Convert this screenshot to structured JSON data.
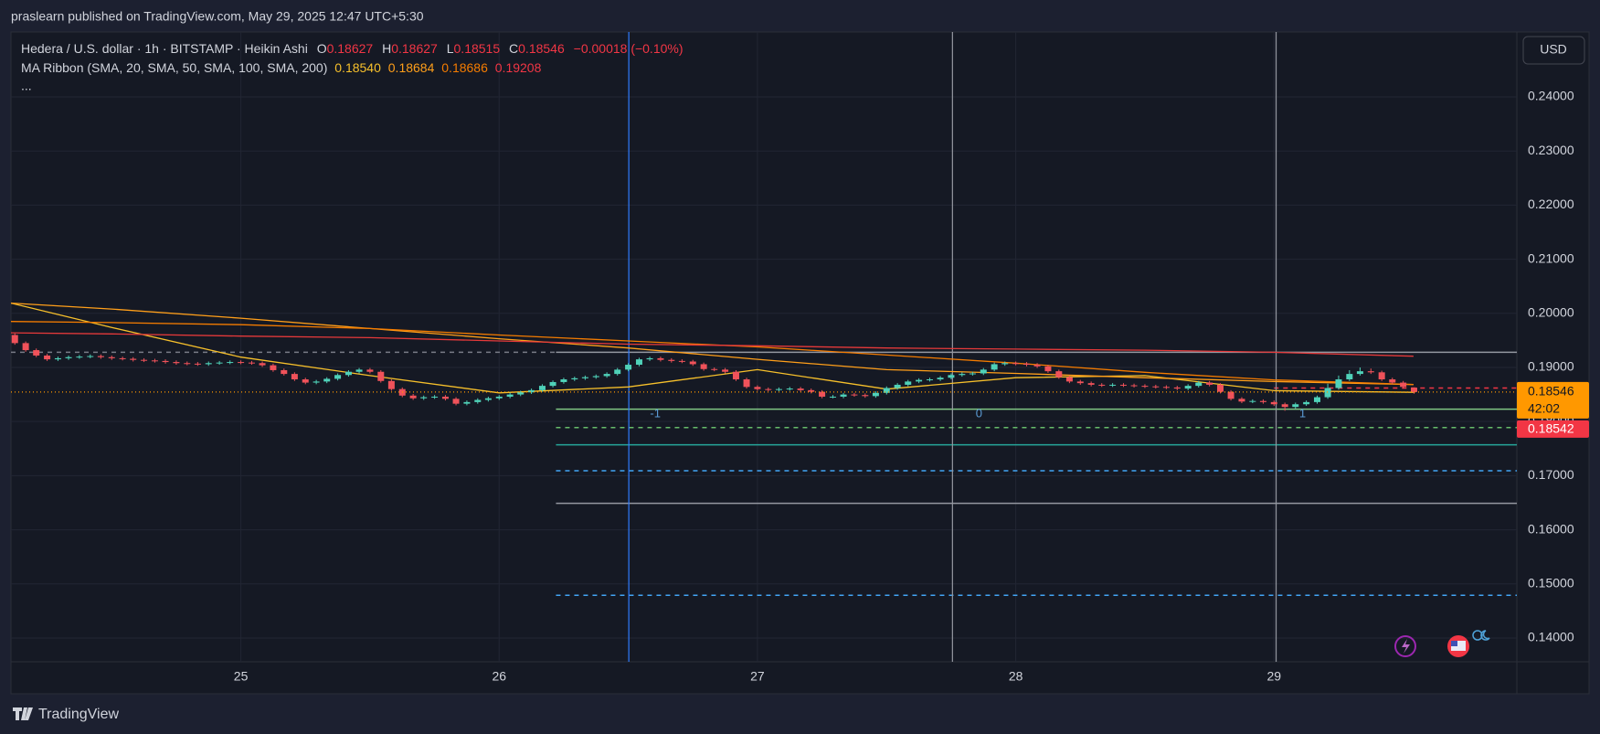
{
  "published": "praslearn published on TradingView.com, May 29, 2025 12:47 UTC+5:30",
  "chart_data": {
    "type": "candlestick",
    "symbol": "Hedera / U.S. dollar · 1h · BITSTAMP · Heikin Ashi",
    "ohlc_labels": [
      "O",
      "H",
      "L",
      "C"
    ],
    "change_label": "−0.00018 (−0.10%)",
    "indicator": "MA Ribbon (SMA, 20, SMA, 50, SMA, 100, SMA, 200)",
    "indicator_values": [
      "0.18540",
      "0.18684",
      "0.18686",
      "0.19208"
    ],
    "more": "...",
    "currency": "USD",
    "countdown": "42:02",
    "bid_tag": 0.18542,
    "up_color": "#4fd1b8",
    "down_color": "#f0525a",
    "last_color": "#ff9800",
    "bid_color": "#f23645",
    "grid": true,
    "xlim": [
      24.11,
      29.94
    ],
    "ylim": [
      0.1356,
      0.252
    ],
    "xticks": [
      25,
      26,
      27,
      28,
      29
    ],
    "yticks": [
      {
        "value": 0.14,
        "label": "0.14000"
      },
      {
        "value": 0.15,
        "label": "0.15000"
      },
      {
        "value": 0.16,
        "label": "0.16000"
      },
      {
        "value": 0.17,
        "label": "0.17000"
      },
      {
        "value": 0.18,
        "label": "0.18000"
      },
      {
        "value": 0.19,
        "label": "0.19000"
      },
      {
        "value": 0.2,
        "label": "0.20000"
      },
      {
        "value": 0.21,
        "label": "0.21000"
      },
      {
        "value": 0.22,
        "label": "0.22000"
      },
      {
        "value": 0.23,
        "label": "0.23000"
      },
      {
        "value": 0.24,
        "label": "0.24000"
      }
    ],
    "x": [
      24.125,
      24.167,
      24.208,
      24.25,
      24.292,
      24.333,
      24.375,
      24.417,
      24.458,
      24.5,
      24.542,
      24.583,
      24.625,
      24.667,
      24.708,
      24.75,
      24.792,
      24.833,
      24.875,
      24.917,
      24.958,
      25,
      25.042,
      25.083,
      25.125,
      25.167,
      25.208,
      25.25,
      25.292,
      25.333,
      25.375,
      25.417,
      25.458,
      25.5,
      25.542,
      25.583,
      25.625,
      25.667,
      25.708,
      25.75,
      25.792,
      25.833,
      25.875,
      25.917,
      25.958,
      26,
      26.042,
      26.083,
      26.125,
      26.167,
      26.208,
      26.25,
      26.292,
      26.333,
      26.375,
      26.417,
      26.458,
      26.5,
      26.542,
      26.583,
      26.625,
      26.667,
      26.708,
      26.75,
      26.792,
      26.833,
      26.875,
      26.917,
      26.958,
      27,
      27.042,
      27.083,
      27.125,
      27.167,
      27.208,
      27.25,
      27.292,
      27.333,
      27.375,
      27.417,
      27.458,
      27.5,
      27.542,
      27.583,
      27.625,
      27.667,
      27.708,
      27.75,
      27.792,
      27.833,
      27.875,
      27.917,
      27.958,
      28,
      28.042,
      28.083,
      28.125,
      28.167,
      28.208,
      28.25,
      28.292,
      28.333,
      28.375,
      28.417,
      28.458,
      28.5,
      28.542,
      28.583,
      28.625,
      28.667,
      28.708,
      28.75,
      28.792,
      28.833,
      28.875,
      28.917,
      28.958,
      29,
      29.042,
      29.083,
      29.125,
      29.167,
      29.208,
      29.25,
      29.292,
      29.333,
      29.375,
      29.417,
      29.458,
      29.5,
      29.542
    ],
    "ohlc": [
      [
        0.196,
        0.1963,
        0.1942,
        0.1945
      ],
      [
        0.1945,
        0.1948,
        0.1929,
        0.1932
      ],
      [
        0.1932,
        0.1935,
        0.1919,
        0.1922
      ],
      [
        0.1922,
        0.1925,
        0.1912,
        0.1915
      ],
      [
        0.1915,
        0.192,
        0.1912,
        0.1917
      ],
      [
        0.1917,
        0.1922,
        0.1914,
        0.1919
      ],
      [
        0.1919,
        0.1923,
        0.1916,
        0.192
      ],
      [
        0.192,
        0.1924,
        0.1917,
        0.1921
      ],
      [
        0.1921,
        0.1924,
        0.1916,
        0.1919
      ],
      [
        0.1919,
        0.1922,
        0.1914,
        0.1917
      ],
      [
        0.1917,
        0.192,
        0.1913,
        0.1916
      ],
      [
        0.1916,
        0.1919,
        0.1911,
        0.1914
      ],
      [
        0.1914,
        0.1917,
        0.191,
        0.1913
      ],
      [
        0.1913,
        0.1916,
        0.1909,
        0.1912
      ],
      [
        0.1912,
        0.1915,
        0.1907,
        0.191
      ],
      [
        0.191,
        0.1913,
        0.1905,
        0.1908
      ],
      [
        0.1908,
        0.1911,
        0.1904,
        0.1907
      ],
      [
        0.1907,
        0.191,
        0.1903,
        0.1906
      ],
      [
        0.1906,
        0.1911,
        0.1903,
        0.1908
      ],
      [
        0.1908,
        0.1912,
        0.1905,
        0.1909
      ],
      [
        0.1909,
        0.1913,
        0.1906,
        0.191
      ],
      [
        0.191,
        0.1913,
        0.1906,
        0.1909
      ],
      [
        0.1909,
        0.1912,
        0.1905,
        0.1908
      ],
      [
        0.1908,
        0.1911,
        0.1901,
        0.1904
      ],
      [
        0.1904,
        0.1907,
        0.1892,
        0.1895
      ],
      [
        0.1895,
        0.1898,
        0.1885,
        0.1888
      ],
      [
        0.1888,
        0.1891,
        0.1875,
        0.1878
      ],
      [
        0.1878,
        0.1881,
        0.1869,
        0.1872
      ],
      [
        0.1872,
        0.1877,
        0.1869,
        0.1874
      ],
      [
        0.1874,
        0.1882,
        0.1871,
        0.1879
      ],
      [
        0.1879,
        0.1889,
        0.1876,
        0.1886
      ],
      [
        0.1886,
        0.1895,
        0.1883,
        0.1892
      ],
      [
        0.1892,
        0.1899,
        0.1889,
        0.1896
      ],
      [
        0.1896,
        0.1899,
        0.1889,
        0.1892
      ],
      [
        0.1892,
        0.1895,
        0.1872,
        0.1875
      ],
      [
        0.1875,
        0.1878,
        0.1857,
        0.186
      ],
      [
        0.186,
        0.1863,
        0.1845,
        0.1848
      ],
      [
        0.1848,
        0.1851,
        0.184,
        0.1843
      ],
      [
        0.1843,
        0.1848,
        0.184,
        0.1845
      ],
      [
        0.1845,
        0.1849,
        0.1842,
        0.1846
      ],
      [
        0.1846,
        0.1849,
        0.1839,
        0.1842
      ],
      [
        0.1842,
        0.1845,
        0.183,
        0.1833
      ],
      [
        0.1833,
        0.1839,
        0.183,
        0.1836
      ],
      [
        0.1836,
        0.1843,
        0.1833,
        0.184
      ],
      [
        0.184,
        0.1846,
        0.1837,
        0.1843
      ],
      [
        0.1843,
        0.1849,
        0.184,
        0.1846
      ],
      [
        0.1846,
        0.1853,
        0.1843,
        0.185
      ],
      [
        0.185,
        0.1857,
        0.1847,
        0.1854
      ],
      [
        0.1854,
        0.1861,
        0.1851,
        0.1858
      ],
      [
        0.1858,
        0.1869,
        0.1855,
        0.1866
      ],
      [
        0.1866,
        0.1876,
        0.1863,
        0.1873
      ],
      [
        0.1873,
        0.1881,
        0.187,
        0.1878
      ],
      [
        0.1878,
        0.1883,
        0.1875,
        0.188
      ],
      [
        0.188,
        0.1885,
        0.1877,
        0.1882
      ],
      [
        0.1882,
        0.1887,
        0.1879,
        0.1884
      ],
      [
        0.1884,
        0.1891,
        0.1881,
        0.1888
      ],
      [
        0.1888,
        0.1899,
        0.1885,
        0.1896
      ],
      [
        0.1896,
        0.1908,
        0.1893,
        0.1905
      ],
      [
        0.1905,
        0.1918,
        0.1902,
        0.1915
      ],
      [
        0.1915,
        0.192,
        0.1912,
        0.1917
      ],
      [
        0.1917,
        0.192,
        0.1911,
        0.1914
      ],
      [
        0.1914,
        0.1917,
        0.1909,
        0.1912
      ],
      [
        0.1912,
        0.1915,
        0.1908,
        0.1911
      ],
      [
        0.1911,
        0.1914,
        0.1903,
        0.1906
      ],
      [
        0.1906,
        0.1909,
        0.1894,
        0.1897
      ],
      [
        0.1897,
        0.19,
        0.1893,
        0.1896
      ],
      [
        0.1896,
        0.1899,
        0.1889,
        0.1892
      ],
      [
        0.1892,
        0.1895,
        0.1875,
        0.1878
      ],
      [
        0.1878,
        0.1881,
        0.1861,
        0.1864
      ],
      [
        0.1864,
        0.1867,
        0.1857,
        0.186
      ],
      [
        0.186,
        0.1863,
        0.1856,
        0.1859
      ],
      [
        0.1859,
        0.1863,
        0.1856,
        0.186
      ],
      [
        0.186,
        0.1864,
        0.1857,
        0.1861
      ],
      [
        0.1861,
        0.1864,
        0.1855,
        0.1858
      ],
      [
        0.1858,
        0.1861,
        0.1852,
        0.1855
      ],
      [
        0.1855,
        0.1858,
        0.1843,
        0.1846
      ],
      [
        0.1846,
        0.1849,
        0.1843,
        0.1846
      ],
      [
        0.1846,
        0.1853,
        0.1843,
        0.185
      ],
      [
        0.185,
        0.1853,
        0.1846,
        0.1849
      ],
      [
        0.1849,
        0.1852,
        0.1844,
        0.1847
      ],
      [
        0.1847,
        0.1856,
        0.1844,
        0.1853
      ],
      [
        0.1853,
        0.1865,
        0.185,
        0.1862
      ],
      [
        0.1862,
        0.1871,
        0.1859,
        0.1868
      ],
      [
        0.1868,
        0.1877,
        0.1865,
        0.1874
      ],
      [
        0.1874,
        0.188,
        0.1871,
        0.1877
      ],
      [
        0.1877,
        0.1881,
        0.1874,
        0.1878
      ],
      [
        0.1878,
        0.1884,
        0.1875,
        0.1881
      ],
      [
        0.1881,
        0.1889,
        0.1878,
        0.1886
      ],
      [
        0.1886,
        0.1891,
        0.1883,
        0.1888
      ],
      [
        0.1888,
        0.1892,
        0.1885,
        0.1889
      ],
      [
        0.1889,
        0.1899,
        0.1886,
        0.1896
      ],
      [
        0.1896,
        0.1909,
        0.1893,
        0.1906
      ],
      [
        0.1906,
        0.1911,
        0.1903,
        0.1908
      ],
      [
        0.1908,
        0.1911,
        0.1904,
        0.1907
      ],
      [
        0.1907,
        0.191,
        0.1902,
        0.1905
      ],
      [
        0.1905,
        0.1908,
        0.1899,
        0.1902
      ],
      [
        0.1902,
        0.1905,
        0.189,
        0.1893
      ],
      [
        0.1893,
        0.1896,
        0.1879,
        0.1882
      ],
      [
        0.1882,
        0.1885,
        0.1871,
        0.1874
      ],
      [
        0.1874,
        0.1877,
        0.1868,
        0.1871
      ],
      [
        0.1871,
        0.1874,
        0.1865,
        0.1868
      ],
      [
        0.1868,
        0.1871,
        0.1864,
        0.1867
      ],
      [
        0.1867,
        0.1871,
        0.1864,
        0.1868
      ],
      [
        0.1868,
        0.1871,
        0.1864,
        0.1867
      ],
      [
        0.1867,
        0.187,
        0.1863,
        0.1866
      ],
      [
        0.1866,
        0.1869,
        0.1862,
        0.1865
      ],
      [
        0.1865,
        0.1868,
        0.1861,
        0.1864
      ],
      [
        0.1864,
        0.1867,
        0.186,
        0.1863
      ],
      [
        0.1863,
        0.1866,
        0.1858,
        0.1861
      ],
      [
        0.1861,
        0.1869,
        0.1858,
        0.1866
      ],
      [
        0.1866,
        0.1875,
        0.1863,
        0.1872
      ],
      [
        0.1872,
        0.1875,
        0.1865,
        0.1868
      ],
      [
        0.1868,
        0.1871,
        0.1852,
        0.1855
      ],
      [
        0.1855,
        0.1858,
        0.1839,
        0.1842
      ],
      [
        0.1842,
        0.1845,
        0.1834,
        0.1837
      ],
      [
        0.1837,
        0.1841,
        0.1834,
        0.1838
      ],
      [
        0.1838,
        0.1841,
        0.1833,
        0.1836
      ],
      [
        0.1836,
        0.1839,
        0.1829,
        0.1832
      ],
      [
        0.1832,
        0.1835,
        0.182,
        0.1827
      ],
      [
        0.1827,
        0.1835,
        0.1824,
        0.1832
      ],
      [
        0.1832,
        0.1839,
        0.1829,
        0.1836
      ],
      [
        0.1836,
        0.1848,
        0.1833,
        0.1845
      ],
      [
        0.1845,
        0.187,
        0.1842,
        0.1862
      ],
      [
        0.1862,
        0.1885,
        0.1859,
        0.1878
      ],
      [
        0.1878,
        0.1895,
        0.1875,
        0.1888
      ],
      [
        0.1888,
        0.19,
        0.1885,
        0.1893
      ],
      [
        0.1893,
        0.1898,
        0.1888,
        0.1891
      ],
      [
        0.1891,
        0.1894,
        0.1875,
        0.1878
      ],
      [
        0.1878,
        0.1881,
        0.1869,
        0.1872
      ],
      [
        0.1872,
        0.1875,
        0.1861,
        0.1864
      ],
      [
        0.18627,
        0.18627,
        0.18515,
        0.18546
      ]
    ],
    "series": [
      {
        "color": "#f7c02b",
        "x": [
          24.11,
          24.5,
          25,
          25.5,
          26,
          26.5,
          27,
          27.5,
          28,
          28.5,
          29,
          29.54
        ],
        "values": [
          0.2019,
          0.1974,
          0.1919,
          0.1885,
          0.1853,
          0.1864,
          0.1896,
          0.186,
          0.1881,
          0.1885,
          0.1857,
          0.1854
        ]
      },
      {
        "color": "#ff9f1a",
        "x": [
          24.11,
          24.5,
          25,
          25.5,
          26,
          26.5,
          27,
          27.5,
          28,
          28.5,
          29,
          29.54
        ],
        "values": [
          0.2019,
          0.2008,
          0.1991,
          0.1972,
          0.1953,
          0.1936,
          0.1915,
          0.1896,
          0.1889,
          0.1881,
          0.1874,
          0.18684
        ]
      },
      {
        "color": "#f57c00",
        "x": [
          24.11,
          24.5,
          25,
          25.5,
          26,
          26.5,
          27,
          27.5,
          28,
          28.5,
          29,
          29.54
        ],
        "values": [
          0.1985,
          0.1983,
          0.1979,
          0.1972,
          0.196,
          0.1949,
          0.1938,
          0.1923,
          0.1908,
          0.1891,
          0.1877,
          0.18686
        ]
      },
      {
        "color": "#e5393a",
        "x": [
          24.11,
          24.5,
          25,
          25.5,
          26,
          26.5,
          27,
          27.5,
          28,
          28.5,
          29,
          29.54
        ],
        "values": [
          0.1964,
          0.1962,
          0.1958,
          0.1955,
          0.1949,
          0.1943,
          0.194,
          0.1936,
          0.1934,
          0.1932,
          0.1928,
          0.19208
        ]
      }
    ],
    "hlines": [
      {
        "value": 0.1928,
        "from": 24.11,
        "to": 26.22,
        "color": "#787b86",
        "dash": true
      },
      {
        "value": 0.1928,
        "from": 26.22,
        "color": "#9598a1",
        "dash": false
      },
      {
        "value": 0.1823,
        "from": 26.22,
        "color": "#81c784",
        "dash": false
      },
      {
        "value": 0.1789,
        "from": 26.22,
        "color": "#66bb6a",
        "dash": true
      },
      {
        "value": 0.1757,
        "from": 26.22,
        "color": "#26a69a",
        "dash": false
      },
      {
        "value": 0.1709,
        "from": 26.22,
        "color": "#42a5f5",
        "dash": true
      },
      {
        "value": 0.1649,
        "from": 26.22,
        "color": "#9598a1",
        "dash": false
      },
      {
        "value": 0.1479,
        "from": 26.22,
        "color": "#42a5f5",
        "dash": true
      },
      {
        "value": 0.1862,
        "from": 29.0,
        "color": "#f23645",
        "dash": true
      }
    ],
    "vlines": [
      {
        "x": 26.502,
        "color": "#2f7bff",
        "label": "-1"
      },
      {
        "x": 27.755,
        "color": "#9598a1",
        "label": "0"
      },
      {
        "x": 29.008,
        "color": "#9598a1",
        "label": "1"
      }
    ]
  },
  "footer": "TradingView"
}
